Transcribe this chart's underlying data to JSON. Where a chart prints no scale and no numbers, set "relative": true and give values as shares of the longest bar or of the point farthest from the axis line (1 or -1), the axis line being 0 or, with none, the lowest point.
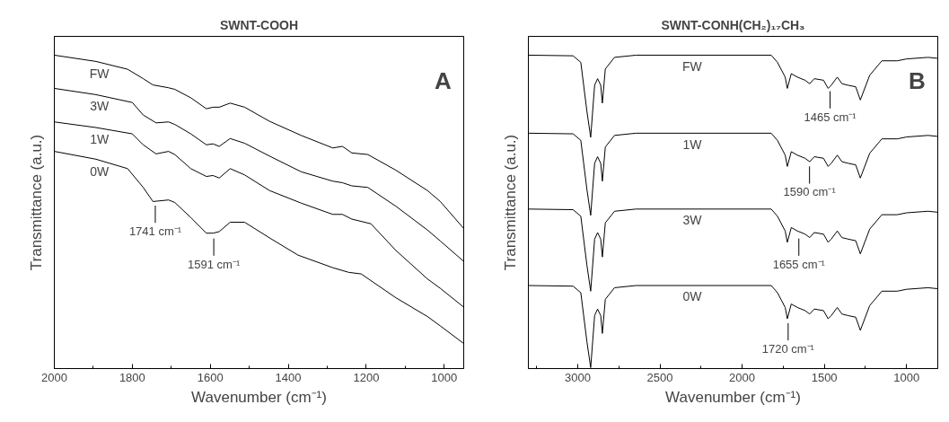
{
  "chart_data": [
    {
      "type": "line",
      "title": "SWNT-COOH",
      "xlabel": "Wavenumber (cm⁻¹)",
      "ylabel": "Transmittance (a.u.)",
      "relative": true,
      "xlim": [
        2000,
        950
      ],
      "xticks": [
        2000,
        1800,
        1600,
        1400,
        1200,
        1000
      ],
      "grid": false,
      "annotations": [
        "A",
        {
          "text": "1741 cm⁻¹",
          "x": 1741,
          "y": 0.535
        },
        {
          "text": "1591 cm⁻¹",
          "x": 1591,
          "y": 0.43
        }
      ],
      "series": [
        {
          "name": "FW",
          "color": "#000000",
          "x": [
            2000,
            1893,
            1812,
            1772,
            1747,
            1707,
            1691,
            1650,
            1610,
            1593,
            1577,
            1549,
            1512,
            1448,
            1367,
            1286,
            1261,
            1237,
            1196,
            1124,
            1043,
            1010,
            950
          ],
          "values": [
            1.0,
            0.98,
            0.955,
            0.925,
            0.905,
            0.896,
            0.891,
            0.864,
            0.829,
            0.834,
            0.834,
            0.847,
            0.834,
            0.789,
            0.744,
            0.704,
            0.709,
            0.688,
            0.683,
            0.633,
            0.568,
            0.533,
            0.447
          ]
        },
        {
          "name": "3W",
          "color": "#000000",
          "x": [
            2000,
            1893,
            1800,
            1772,
            1739,
            1707,
            1691,
            1650,
            1610,
            1593,
            1577,
            1549,
            1512,
            1448,
            1367,
            1286,
            1261,
            1237,
            1196,
            1124,
            1043,
            1010,
            950
          ],
          "values": [
            0.894,
            0.874,
            0.849,
            0.809,
            0.784,
            0.787,
            0.779,
            0.749,
            0.714,
            0.717,
            0.709,
            0.734,
            0.719,
            0.678,
            0.628,
            0.598,
            0.593,
            0.583,
            0.578,
            0.518,
            0.442,
            0.407,
            0.342
          ]
        },
        {
          "name": "1W",
          "color": "#000000",
          "x": [
            2000,
            1893,
            1800,
            1772,
            1739,
            1707,
            1691,
            1650,
            1610,
            1593,
            1577,
            1549,
            1512,
            1448,
            1367,
            1286,
            1261,
            1237,
            1188,
            1124,
            1043,
            1010,
            950
          ],
          "values": [
            0.787,
            0.769,
            0.749,
            0.714,
            0.685,
            0.693,
            0.683,
            0.638,
            0.613,
            0.616,
            0.608,
            0.638,
            0.618,
            0.568,
            0.528,
            0.492,
            0.492,
            0.477,
            0.462,
            0.377,
            0.286,
            0.256,
            0.196
          ]
        },
        {
          "name": "0W",
          "color": "#000000",
          "x": [
            2000,
            1893,
            1812,
            1772,
            1747,
            1707,
            1691,
            1650,
            1610,
            1593,
            1577,
            1549,
            1512,
            1448,
            1375,
            1286,
            1245,
            1213,
            1124,
            1043,
            1010,
            950
          ],
          "values": [
            0.693,
            0.668,
            0.638,
            0.578,
            0.533,
            0.538,
            0.53,
            0.482,
            0.432,
            0.432,
            0.437,
            0.467,
            0.467,
            0.417,
            0.362,
            0.322,
            0.307,
            0.302,
            0.226,
            0.166,
            0.136,
            0.08
          ]
        }
      ]
    },
    {
      "type": "line",
      "title": "SWNT-CONH(CH₂)₁₇CH₃",
      "xlabel": "Wavenumber (cm⁻¹)",
      "ylabel": "Transmittance (a.u.)",
      "relative": true,
      "xlim": [
        3300,
        810
      ],
      "xticks": [
        3000,
        2500,
        2000,
        1500,
        1000
      ],
      "grid": false,
      "annotations": [
        "B",
        {
          "text": "1465 cm⁻¹",
          "x": 1465,
          "y": 0.9
        },
        {
          "text": "1590 cm⁻¹",
          "x": 1590,
          "y": 0.66
        },
        {
          "text": "1655 cm⁻¹",
          "x": 1655,
          "y": 0.43
        },
        {
          "text": "1720 cm⁻¹",
          "x": 1720,
          "y": 0.16
        }
      ],
      "x": [
        3299,
        3028,
        2981,
        2944,
        2921,
        2897,
        2879,
        2860,
        2850,
        2832,
        2776,
        2645,
        1823,
        1785,
        1738,
        1725,
        1701,
        1664,
        1617,
        1589,
        1561,
        1505,
        1477,
        1458,
        1421,
        1393,
        1355,
        1309,
        1281,
        1224,
        1150,
        1056,
        1000,
        869,
        813
      ],
      "series": [
        {
          "name": "FW",
          "color": "#000000",
          "values": [
            1.0,
            0.998,
            0.977,
            0.821,
            0.738,
            0.904,
            0.925,
            0.904,
            0.847,
            0.956,
            0.993,
            1.0,
            1.0,
            0.977,
            0.93,
            0.894,
            0.941,
            0.93,
            0.92,
            0.909,
            0.925,
            0.92,
            0.894,
            0.904,
            0.93,
            0.909,
            0.904,
            0.899,
            0.857,
            0.936,
            0.982,
            0.982,
            0.988,
            0.993,
            0.99
          ]
        },
        {
          "name": "1W",
          "color": "#000000",
          "values": [
            0.751,
            0.749,
            0.728,
            0.572,
            0.489,
            0.655,
            0.676,
            0.655,
            0.598,
            0.707,
            0.744,
            0.751,
            0.751,
            0.728,
            0.681,
            0.645,
            0.692,
            0.681,
            0.671,
            0.66,
            0.676,
            0.671,
            0.645,
            0.655,
            0.681,
            0.66,
            0.655,
            0.65,
            0.608,
            0.687,
            0.733,
            0.733,
            0.739,
            0.744,
            0.741
          ]
        },
        {
          "name": "3W",
          "color": "#000000",
          "values": [
            0.509,
            0.507,
            0.486,
            0.33,
            0.247,
            0.413,
            0.434,
            0.413,
            0.356,
            0.465,
            0.502,
            0.509,
            0.509,
            0.486,
            0.439,
            0.403,
            0.45,
            0.439,
            0.429,
            0.418,
            0.434,
            0.429,
            0.403,
            0.413,
            0.439,
            0.418,
            0.413,
            0.408,
            0.366,
            0.445,
            0.491,
            0.491,
            0.497,
            0.502,
            0.499
          ]
        },
        {
          "name": "0W",
          "color": "#000000",
          "values": [
            0.265,
            0.263,
            0.242,
            0.086,
            0.003,
            0.169,
            0.19,
            0.169,
            0.112,
            0.221,
            0.258,
            0.265,
            0.265,
            0.242,
            0.195,
            0.159,
            0.206,
            0.195,
            0.185,
            0.174,
            0.19,
            0.185,
            0.159,
            0.169,
            0.195,
            0.174,
            0.169,
            0.164,
            0.122,
            0.201,
            0.247,
            0.247,
            0.253,
            0.258,
            0.255
          ]
        }
      ]
    }
  ]
}
